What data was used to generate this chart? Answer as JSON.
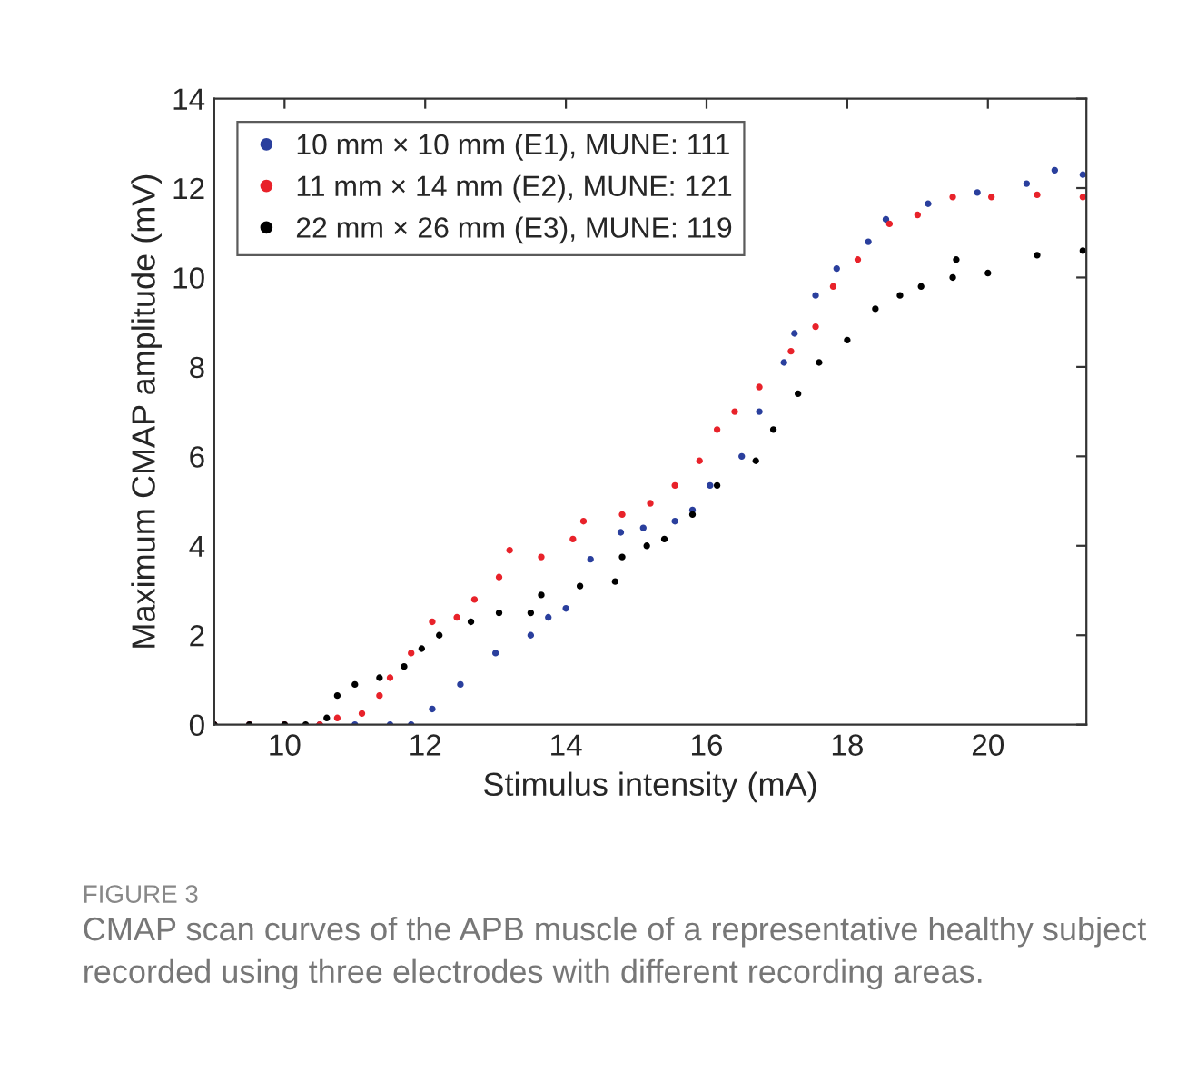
{
  "chart_data": {
    "type": "scatter",
    "xlabel": "Stimulus intensity (mA)",
    "ylabel": "Maximum CMAP amplitude (mV)",
    "xlim": [
      9,
      21.4
    ],
    "xticks": [
      10,
      12,
      14,
      16,
      18,
      20
    ],
    "ylim": [
      0,
      14
    ],
    "yticks": [
      0,
      2,
      4,
      6,
      8,
      10,
      12,
      14
    ],
    "grid": false,
    "legend": "top left",
    "marker": "circle",
    "series": [
      {
        "name": "10 mm × 10 mm (E1), MUNE: 111",
        "color": "#2a3f9d",
        "x": [
          9.0,
          9.5,
          10.0,
          10.5,
          11.0,
          11.5,
          11.8,
          12.1,
          12.5,
          13.0,
          13.5,
          13.75,
          14.0,
          14.35,
          14.78,
          15.1,
          15.55,
          15.8,
          16.05,
          16.5,
          16.75,
          17.1,
          17.25,
          17.55,
          17.85,
          18.3,
          18.55,
          19.15,
          19.85,
          20.55,
          20.95,
          21.35
        ],
        "values": [
          0,
          0,
          0,
          0,
          0,
          0,
          0,
          0.35,
          0.9,
          1.6,
          2.0,
          2.4,
          2.6,
          3.7,
          4.3,
          4.4,
          4.55,
          4.8,
          5.35,
          6.0,
          7.0,
          8.1,
          8.75,
          9.6,
          10.2,
          10.8,
          11.3,
          11.65,
          11.9,
          12.1,
          12.4,
          12.3
        ]
      },
      {
        "name": "11 mm × 14 mm (E2), MUNE: 121",
        "color": "#e8222a",
        "x": [
          9.0,
          9.5,
          10.0,
          10.5,
          10.75,
          11.1,
          11.35,
          11.5,
          11.8,
          12.1,
          12.45,
          12.7,
          13.05,
          13.2,
          13.65,
          14.1,
          14.25,
          14.8,
          15.2,
          15.55,
          15.9,
          16.15,
          16.4,
          16.75,
          17.2,
          17.55,
          17.8,
          18.15,
          18.6,
          19.0,
          19.5,
          20.05,
          20.7,
          21.35
        ],
        "values": [
          0,
          0,
          0,
          0,
          0.15,
          0.25,
          0.65,
          1.05,
          1.6,
          2.3,
          2.4,
          2.8,
          3.3,
          3.9,
          3.75,
          4.15,
          4.55,
          4.7,
          4.95,
          5.35,
          5.9,
          6.6,
          7.0,
          7.55,
          8.35,
          8.9,
          9.8,
          10.4,
          11.2,
          11.4,
          11.8,
          11.8,
          11.85,
          11.8
        ]
      },
      {
        "name": "22 mm × 26 mm (E3), MUNE: 119",
        "color": "#000000",
        "x": [
          9.0,
          9.5,
          10.0,
          10.3,
          10.6,
          10.75,
          11.0,
          11.35,
          11.7,
          11.95,
          12.2,
          12.65,
          13.05,
          13.5,
          13.65,
          14.2,
          14.7,
          14.8,
          15.15,
          15.4,
          15.8,
          16.15,
          16.7,
          16.95,
          17.3,
          17.6,
          18.0,
          18.4,
          18.75,
          19.05,
          19.5,
          20.0,
          19.55,
          20.7,
          21.35
        ],
        "values": [
          0,
          0,
          0,
          0,
          0.15,
          0.65,
          0.9,
          1.05,
          1.3,
          1.7,
          2.0,
          2.3,
          2.5,
          2.5,
          2.9,
          3.1,
          3.2,
          3.75,
          4.0,
          4.15,
          4.7,
          5.35,
          5.9,
          6.6,
          7.4,
          8.1,
          8.6,
          9.3,
          9.6,
          9.8,
          10.0,
          10.1,
          10.4,
          10.5,
          10.6
        ]
      }
    ],
    "annotations": [
      "FIGURE 3",
      "CMAP scan curves of the APB muscle of a representative healthy subject recorded using three electrodes with different recording areas."
    ]
  }
}
